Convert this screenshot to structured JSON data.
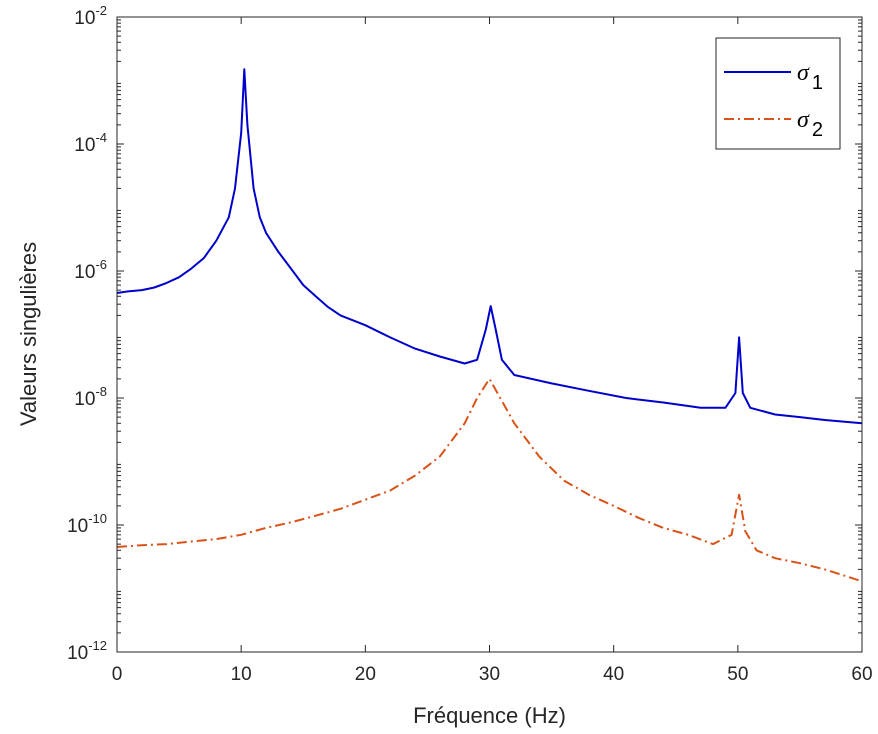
{
  "chart_data": {
    "type": "line",
    "xlabel": "Fréquence (Hz)",
    "ylabel": "Valeurs singulières",
    "xlim": [
      0,
      60
    ],
    "ylim": [
      1e-12,
      0.01
    ],
    "yscale": "log",
    "grid": false,
    "legend_position": "top-right",
    "x_ticks": [
      "0",
      "10",
      "20",
      "30",
      "40",
      "50",
      "60"
    ],
    "y_ticks": [
      {
        "base": "10",
        "exp": "-12"
      },
      {
        "base": "10",
        "exp": "-10"
      },
      {
        "base": "10",
        "exp": "-8"
      },
      {
        "base": "10",
        "exp": "-6"
      },
      {
        "base": "10",
        "exp": "-4"
      },
      {
        "base": "10",
        "exp": "-2"
      }
    ],
    "series": [
      {
        "name": "σ1",
        "legend_symbol": "σ",
        "legend_sub": "1",
        "color": "#0000cc",
        "style": "solid",
        "points": [
          [
            0,
            4.5e-07
          ],
          [
            1,
            4.8e-07
          ],
          [
            2,
            5e-07
          ],
          [
            3,
            5.5e-07
          ],
          [
            4,
            6.5e-07
          ],
          [
            5,
            8e-07
          ],
          [
            6,
            1.1e-06
          ],
          [
            7,
            1.6e-06
          ],
          [
            8,
            3e-06
          ],
          [
            9,
            7e-06
          ],
          [
            9.5,
            2e-05
          ],
          [
            10,
            0.00015
          ],
          [
            10.25,
            0.0015
          ],
          [
            10.5,
            0.0002
          ],
          [
            11,
            2e-05
          ],
          [
            11.5,
            7e-06
          ],
          [
            12,
            4e-06
          ],
          [
            13,
            2e-06
          ],
          [
            14,
            1.1e-06
          ],
          [
            15,
            6e-07
          ],
          [
            16,
            4e-07
          ],
          [
            17,
            2.7e-07
          ],
          [
            18,
            2e-07
          ],
          [
            20,
            1.4e-07
          ],
          [
            22,
            9e-08
          ],
          [
            24,
            6e-08
          ],
          [
            26,
            4.5e-08
          ],
          [
            28,
            3.5e-08
          ],
          [
            29,
            4e-08
          ],
          [
            29.7,
            1.2e-07
          ],
          [
            30.1,
            2.8e-07
          ],
          [
            30.5,
            1.2e-07
          ],
          [
            31,
            4e-08
          ],
          [
            32,
            2.3e-08
          ],
          [
            35,
            1.7e-08
          ],
          [
            38,
            1.3e-08
          ],
          [
            41,
            1e-08
          ],
          [
            44,
            8.5e-09
          ],
          [
            47,
            7e-09
          ],
          [
            49,
            7e-09
          ],
          [
            49.8,
            1.2e-08
          ],
          [
            50.1,
            9e-08
          ],
          [
            50.4,
            1.2e-08
          ],
          [
            51,
            7e-09
          ],
          [
            53,
            5.5e-09
          ],
          [
            55,
            5e-09
          ],
          [
            57,
            4.5e-09
          ],
          [
            60,
            4e-09
          ]
        ]
      },
      {
        "name": "σ2",
        "legend_symbol": "σ",
        "legend_sub": "2",
        "color": "#d95319",
        "style": "dashdot",
        "points": [
          [
            0,
            4.5e-11
          ],
          [
            2,
            4.8e-11
          ],
          [
            4,
            5e-11
          ],
          [
            6,
            5.5e-11
          ],
          [
            8,
            6e-11
          ],
          [
            10,
            7e-11
          ],
          [
            12,
            9e-11
          ],
          [
            14,
            1.1e-10
          ],
          [
            16,
            1.4e-10
          ],
          [
            18,
            1.8e-10
          ],
          [
            20,
            2.5e-10
          ],
          [
            22,
            3.5e-10
          ],
          [
            24,
            6e-10
          ],
          [
            26,
            1.2e-09
          ],
          [
            28,
            4e-09
          ],
          [
            29,
            1e-08
          ],
          [
            30,
            2e-08
          ],
          [
            31,
            9e-09
          ],
          [
            32,
            4e-09
          ],
          [
            34,
            1.2e-09
          ],
          [
            36,
            5e-10
          ],
          [
            38,
            3e-10
          ],
          [
            40,
            2e-10
          ],
          [
            42,
            1.3e-10
          ],
          [
            44,
            9e-11
          ],
          [
            46,
            7e-11
          ],
          [
            48,
            5e-11
          ],
          [
            49.5,
            7e-11
          ],
          [
            50.1,
            3e-10
          ],
          [
            50.6,
            8e-11
          ],
          [
            51.5,
            4e-11
          ],
          [
            53,
            3e-11
          ],
          [
            55,
            2.5e-11
          ],
          [
            57,
            2e-11
          ],
          [
            60,
            1.3e-11
          ]
        ]
      }
    ]
  }
}
